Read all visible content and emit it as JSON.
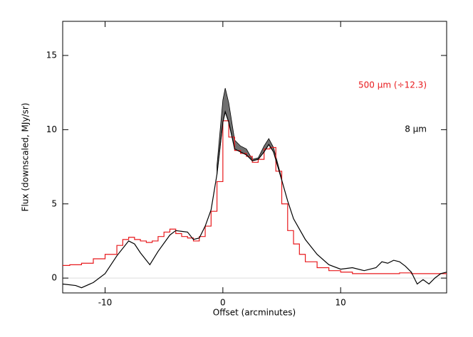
{
  "chart_data": {
    "type": "line",
    "xlabel": "Offset (arcminutes)",
    "ylabel": "Flux (downscaled, MJy/sr)",
    "xlim": [
      -13.6,
      19
    ],
    "ylim": [
      -1,
      17.3
    ],
    "xticks": [
      -10,
      0,
      10
    ],
    "yticks": [
      0,
      5,
      10,
      15
    ],
    "hline": 0,
    "hline_color": "#dddddd",
    "legend": "upper right",
    "series": [
      {
        "name": "500 μm (÷12.3)",
        "color": "#e8191c",
        "style": "step",
        "x": [
          -13.6,
          -13,
          -12,
          -11,
          -10,
          -9,
          -8.5,
          -8,
          -7.5,
          -7,
          -6.5,
          -6,
          -5.5,
          -5,
          -4.5,
          -4,
          -3.5,
          -3,
          -2.5,
          -2,
          -1.5,
          -1,
          -0.5,
          0,
          0.5,
          1,
          1.5,
          2,
          2.5,
          3,
          3.5,
          4,
          4.5,
          5,
          5.5,
          6,
          6.5,
          7,
          8,
          9,
          10,
          11,
          12,
          13,
          14,
          15,
          16,
          17,
          18,
          19
        ],
        "values": [
          0.85,
          0.9,
          1.0,
          1.3,
          1.6,
          2.2,
          2.6,
          2.75,
          2.6,
          2.5,
          2.4,
          2.5,
          2.8,
          3.1,
          3.3,
          3.0,
          2.8,
          2.7,
          2.5,
          2.8,
          3.5,
          4.5,
          6.5,
          10.6,
          9.5,
          8.6,
          8.4,
          8.2,
          7.8,
          8.0,
          8.7,
          8.8,
          7.2,
          5.0,
          3.2,
          2.3,
          1.6,
          1.1,
          0.7,
          0.5,
          0.4,
          0.3,
          0.3,
          0.3,
          0.3,
          0.35,
          0.3,
          0.3,
          0.3,
          0.25
        ]
      },
      {
        "name": "8 μm",
        "color": "#000000",
        "style": "line",
        "x": [
          -13.6,
          -12.5,
          -12,
          -11,
          -10,
          -9,
          -8,
          -7.5,
          -7,
          -6.2,
          -5.5,
          -4.5,
          -4,
          -3,
          -2.5,
          -2,
          -1.5,
          -1,
          -0.5,
          0,
          0.2,
          0.5,
          1,
          1.5,
          2,
          2.5,
          3,
          3.5,
          3.9,
          4.3,
          5,
          5.5,
          6,
          7,
          8,
          9,
          10,
          11,
          12,
          13,
          13.5,
          14,
          14.5,
          15,
          15.5,
          16,
          16.5,
          17,
          17.5,
          18,
          18.5,
          19
        ],
        "values": [
          -0.4,
          -0.5,
          -0.65,
          -0.3,
          0.3,
          1.5,
          2.5,
          2.3,
          1.7,
          0.9,
          1.8,
          2.9,
          3.2,
          3.1,
          2.6,
          2.7,
          3.5,
          4.6,
          7,
          10.5,
          11.2,
          10.5,
          8.7,
          8.5,
          8.3,
          7.9,
          8.0,
          8.5,
          9.0,
          8.5,
          6.6,
          5.2,
          4.0,
          2.6,
          1.6,
          0.9,
          0.6,
          0.7,
          0.5,
          0.7,
          1.1,
          1.0,
          1.2,
          1.1,
          0.8,
          0.4,
          -0.4,
          -0.1,
          -0.4,
          0,
          0.3,
          0.4
        ]
      }
    ],
    "band": {
      "color": "#707070",
      "x": [
        -0.5,
        0,
        0.2,
        0.5,
        1,
        1.5,
        2,
        2.5,
        3,
        3.5,
        3.9,
        4.3,
        5
      ],
      "low": [
        7,
        10.5,
        11.2,
        10.5,
        8.7,
        8.5,
        8.3,
        7.9,
        8.0,
        8.5,
        9.0,
        8.5,
        6.6
      ],
      "high": [
        7.6,
        12.0,
        12.8,
        11.8,
        9.3,
        8.9,
        8.7,
        8.0,
        8.1,
        8.9,
        9.4,
        8.8,
        6.7
      ]
    }
  }
}
